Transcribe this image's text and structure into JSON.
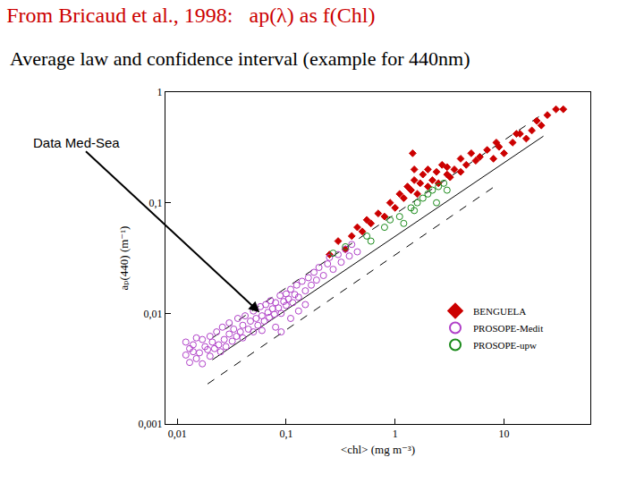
{
  "chart_data": {
    "type": "scatter",
    "title": "From Bricaud et al., 1998:   ap(λ) as f(Chl)",
    "subtitle": "Average law and confidence interval (example for 440nm)",
    "x_label": "<chl> (mg m⁻³)",
    "y_label": "aₚ(440) (m⁻¹)",
    "log": true,
    "grid": false,
    "legend": "lower right",
    "xlim": [
      0.0078,
      62
    ],
    "ylim": [
      0.001,
      1
    ],
    "xticks": [
      {
        "value": 0.01,
        "label": "0,01"
      },
      {
        "value": 0.1,
        "label": "0,1"
      },
      1,
      10
    ],
    "yticks": [
      {
        "value": 0.001,
        "label": "0,001"
      },
      {
        "value": 0.01,
        "label": "0,01"
      },
      {
        "value": 0.1,
        "label": "0,1"
      },
      1
    ],
    "series": [
      {
        "name": "BENGUELA",
        "color": "#cc0000",
        "marker": "diamond",
        "x": [
          0.25,
          0.3,
          0.35,
          0.4,
          0.45,
          0.5,
          0.55,
          0.6,
          0.7,
          0.8,
          0.9,
          1,
          1.1,
          1.2,
          1.3,
          1.4,
          1.5,
          1.6,
          1.7,
          1.8,
          2,
          2,
          2.2,
          2.4,
          2.5,
          2.7,
          3,
          3,
          3.2,
          3.5,
          4,
          4,
          4.5,
          5,
          5.5,
          6,
          7,
          8,
          8.5,
          9,
          10,
          12,
          13,
          14,
          16,
          18,
          20,
          22,
          25,
          30,
          35,
          1.45,
          1.5
        ],
        "values": [
          0.034,
          0.045,
          0.038,
          0.05,
          0.06,
          0.055,
          0.07,
          0.065,
          0.08,
          0.075,
          0.1,
          0.09,
          0.12,
          0.11,
          0.14,
          0.13,
          0.16,
          0.12,
          0.15,
          0.18,
          0.14,
          0.2,
          0.16,
          0.19,
          0.15,
          0.22,
          0.18,
          0.21,
          0.17,
          0.2,
          0.19,
          0.25,
          0.22,
          0.28,
          0.24,
          0.26,
          0.3,
          0.25,
          0.35,
          0.32,
          0.28,
          0.35,
          0.42,
          0.42,
          0.38,
          0.45,
          0.55,
          0.5,
          0.62,
          0.7,
          0.7,
          0.28,
          0.2
        ]
      },
      {
        "name": "PROSOPE-Medit",
        "color": "#b040c8",
        "marker": "circle-open",
        "x": [
          0.012,
          0.012,
          0.013,
          0.013,
          0.014,
          0.014,
          0.015,
          0.015,
          0.016,
          0.017,
          0.017,
          0.018,
          0.019,
          0.02,
          0.02,
          0.021,
          0.022,
          0.023,
          0.024,
          0.025,
          0.026,
          0.027,
          0.028,
          0.03,
          0.03,
          0.032,
          0.033,
          0.035,
          0.036,
          0.038,
          0.04,
          0.04,
          0.042,
          0.045,
          0.047,
          0.05,
          0.05,
          0.053,
          0.055,
          0.058,
          0.06,
          0.063,
          0.065,
          0.068,
          0.07,
          0.072,
          0.075,
          0.078,
          0.08,
          0.085,
          0.088,
          0.09,
          0.095,
          0.1,
          0.1,
          0.105,
          0.11,
          0.115,
          0.12,
          0.125,
          0.13,
          0.14,
          0.15,
          0.16,
          0.17,
          0.18,
          0.19,
          0.2,
          0.22,
          0.24,
          0.25,
          0.27,
          0.3,
          0.32,
          0.35,
          0.38,
          0.4,
          0.45,
          0.06,
          0.08,
          0.11,
          0.15,
          0.09,
          0.13
        ],
        "values": [
          0.0055,
          0.0042,
          0.0048,
          0.0036,
          0.0052,
          0.0045,
          0.0039,
          0.006,
          0.0044,
          0.0035,
          0.0058,
          0.005,
          0.0047,
          0.0062,
          0.0041,
          0.0055,
          0.0048,
          0.0068,
          0.0052,
          0.0045,
          0.0075,
          0.0058,
          0.005,
          0.0065,
          0.0082,
          0.0056,
          0.0072,
          0.0062,
          0.009,
          0.0068,
          0.0078,
          0.006,
          0.0095,
          0.0072,
          0.0085,
          0.0105,
          0.0068,
          0.009,
          0.0078,
          0.0115,
          0.0095,
          0.0085,
          0.012,
          0.0102,
          0.0092,
          0.013,
          0.011,
          0.0098,
          0.0125,
          0.0112,
          0.0145,
          0.01,
          0.0128,
          0.0118,
          0.015,
          0.0135,
          0.0165,
          0.0125,
          0.0148,
          0.018,
          0.014,
          0.0195,
          0.016,
          0.021,
          0.018,
          0.0235,
          0.02,
          0.026,
          0.022,
          0.028,
          0.032,
          0.025,
          0.034,
          0.029,
          0.038,
          0.033,
          0.042,
          0.036,
          0.007,
          0.0075,
          0.009,
          0.012,
          0.0068,
          0.0105
        ]
      },
      {
        "name": "PROSOPE-upw",
        "color": "#1a8a1a",
        "marker": "circle-open",
        "x": [
          0.27,
          0.35,
          0.55,
          0.6,
          0.8,
          0.9,
          1.1,
          1.2,
          1.4,
          1.5,
          1.6,
          1.8,
          2,
          2.2,
          2.4,
          2.5,
          2.8,
          3
        ],
        "values": [
          0.035,
          0.04,
          0.05,
          0.045,
          0.06,
          0.07,
          0.075,
          0.065,
          0.09,
          0.085,
          0.1,
          0.11,
          0.12,
          0.13,
          0.1,
          0.14,
          0.15,
          0.13
        ]
      }
    ],
    "lines": [
      {
        "x": [
          0.021,
          23
        ],
        "values": [
          0.0038,
          0.4
        ],
        "line_style": "solid",
        "color": "#000000"
      },
      {
        "x": [
          0.021,
          23
        ],
        "values": [
          0.006,
          0.64
        ],
        "line_style": "dash",
        "color": "#000000"
      },
      {
        "x": [
          0.019,
          8.6
        ],
        "values": [
          0.0023,
          0.145
        ],
        "line_style": "dash",
        "color": "#000000"
      }
    ],
    "annotations": [
      {
        "text": "Data Med-Sea",
        "x": 0.057,
        "y": 0.0102
      }
    ]
  }
}
